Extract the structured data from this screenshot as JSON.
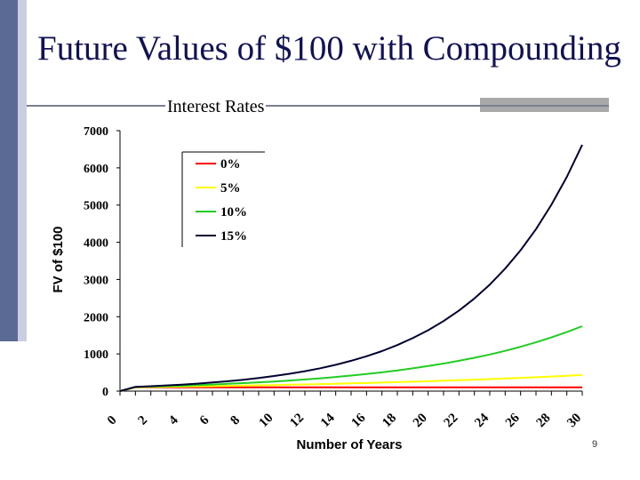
{
  "slide": {
    "title": "Future Values of $100 with Compounding",
    "page_number": "9"
  },
  "colors": {
    "left_bar": "#5a6a94",
    "title_text": "#111155",
    "rule": "#7a7f91"
  },
  "chart_data": {
    "type": "line",
    "title": "Interest Rates",
    "xlabel": "Number of Years",
    "ylabel": "FV of $100",
    "xlim": [
      0,
      30
    ],
    "ylim": [
      0,
      7000
    ],
    "x_ticks": [
      0,
      2,
      4,
      6,
      8,
      10,
      12,
      14,
      16,
      18,
      20,
      22,
      24,
      26,
      28,
      30
    ],
    "x_tick_labels": [
      "0",
      "2",
      "4",
      "6",
      "8",
      "10",
      "12",
      "14",
      "16",
      "18",
      "20",
      "22",
      "24",
      "26",
      "28",
      "30"
    ],
    "y_ticks": [
      0,
      1000,
      2000,
      3000,
      4000,
      5000,
      6000,
      7000
    ],
    "y_tick_labels": [
      "0",
      "1000",
      "2000",
      "3000",
      "4000",
      "5000",
      "6000",
      "7000"
    ],
    "grid": false,
    "legend_position": "top-left",
    "x": [
      1,
      2,
      3,
      4,
      5,
      6,
      7,
      8,
      9,
      10,
      11,
      12,
      13,
      14,
      15,
      16,
      17,
      18,
      19,
      20,
      21,
      22,
      23,
      24,
      25,
      26,
      27,
      28,
      29,
      30
    ],
    "series": [
      {
        "name": "0%",
        "color": "#ff0000",
        "values": [
          100,
          100,
          100,
          100,
          100,
          100,
          100,
          100,
          100,
          100,
          100,
          100,
          100,
          100,
          100,
          100,
          100,
          100,
          100,
          100,
          100,
          100,
          100,
          100,
          100,
          100,
          100,
          100,
          100,
          100
        ]
      },
      {
        "name": "5%",
        "color": "#ffff00",
        "values": [
          105,
          110,
          116,
          122,
          128,
          134,
          141,
          148,
          155,
          163,
          171,
          180,
          189,
          198,
          208,
          218,
          229,
          241,
          253,
          265,
          279,
          293,
          307,
          323,
          339,
          356,
          373,
          392,
          412,
          432
        ]
      },
      {
        "name": "10%",
        "color": "#22cc22",
        "values": [
          110,
          121,
          133,
          146,
          161,
          177,
          195,
          214,
          236,
          259,
          285,
          314,
          345,
          380,
          418,
          459,
          505,
          556,
          612,
          673,
          740,
          814,
          895,
          985,
          1083,
          1192,
          1311,
          1442,
          1586,
          1745
        ]
      },
      {
        "name": "15%",
        "color": "#000033",
        "values": [
          115,
          132,
          152,
          175,
          201,
          231,
          266,
          306,
          352,
          405,
          465,
          535,
          615,
          708,
          814,
          936,
          1076,
          1238,
          1423,
          1637,
          1882,
          2164,
          2489,
          2863,
          3292,
          3786,
          4354,
          5007,
          5758,
          6621
        ]
      }
    ]
  }
}
